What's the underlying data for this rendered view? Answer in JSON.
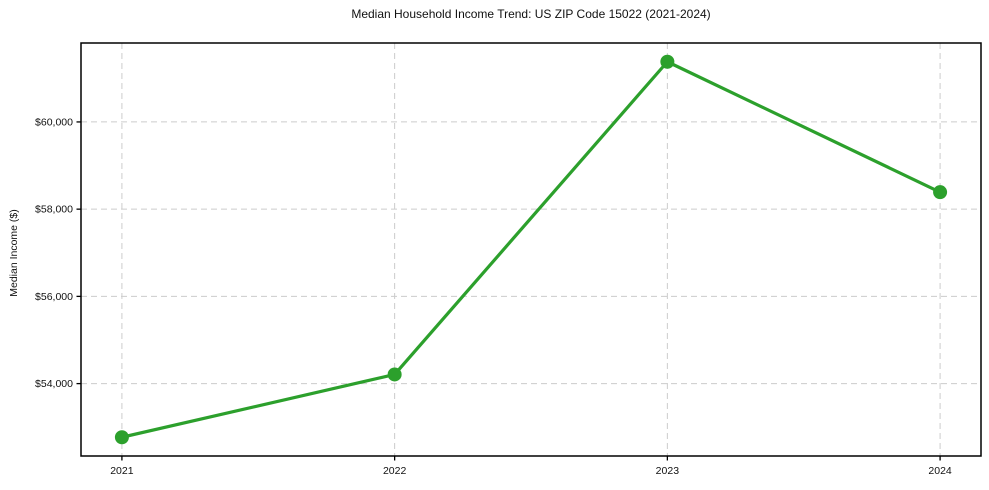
{
  "chart_data": {
    "type": "line",
    "title": "Median Household Income Trend: US ZIP Code 15022 (2021-2024)",
    "xlabel": "",
    "ylabel": "Median Income ($)",
    "x": [
      2021,
      2022,
      2023,
      2024
    ],
    "series": [
      {
        "name": "Median Income",
        "values": [
          52770,
          54210,
          61380,
          58390
        ],
        "color": "#2ca02c",
        "marker": "circle"
      }
    ],
    "xlim": [
      2020.85,
      2024.15
    ],
    "ylim": [
      52340,
      61810
    ],
    "xticks": {
      "values": [
        2021,
        2022,
        2023,
        2024
      ],
      "labels": [
        "2021",
        "2022",
        "2023",
        "2024"
      ]
    },
    "yticks": {
      "values": [
        54000,
        56000,
        58000,
        60000
      ],
      "labels": [
        "$54,000",
        "$56,000",
        "$58,000",
        "$60,000"
      ]
    },
    "grid": {
      "visible": true,
      "style": "dashed",
      "color": "#cccccc"
    },
    "legend": {
      "visible": false
    },
    "spine_color": "#000000",
    "background_color": "#ffffff",
    "text_color": "#111111"
  }
}
